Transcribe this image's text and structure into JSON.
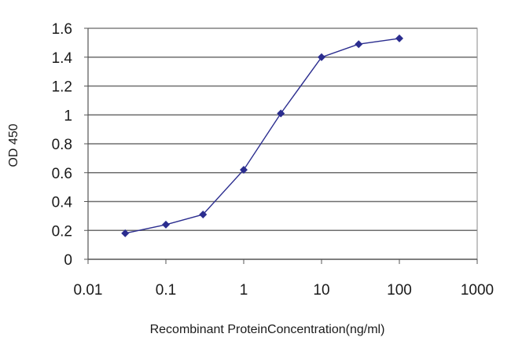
{
  "chart_data": {
    "type": "line",
    "title": "",
    "xlabel": "Recombinant ProteinConcentration(ng/ml)",
    "ylabel": "OD 450",
    "x_scale": "log",
    "xlim": [
      0.01,
      1000
    ],
    "ylim": [
      0,
      1.6
    ],
    "x_ticks": [
      "0.01",
      "0.1",
      "1",
      "10",
      "100",
      "1000"
    ],
    "y_ticks": [
      "0",
      "0.2",
      "0.4",
      "0.6",
      "0.8",
      "1",
      "1.2",
      "1.4",
      "1.6"
    ],
    "grid": "horizontal",
    "legend": "none",
    "series": [
      {
        "x": [
          0.03,
          0.1,
          0.3,
          1,
          3,
          10,
          30,
          100
        ],
        "values": [
          0.18,
          0.24,
          0.31,
          0.62,
          1.01,
          1.4,
          1.49,
          1.53
        ],
        "color": "#2b2d8f"
      }
    ]
  }
}
